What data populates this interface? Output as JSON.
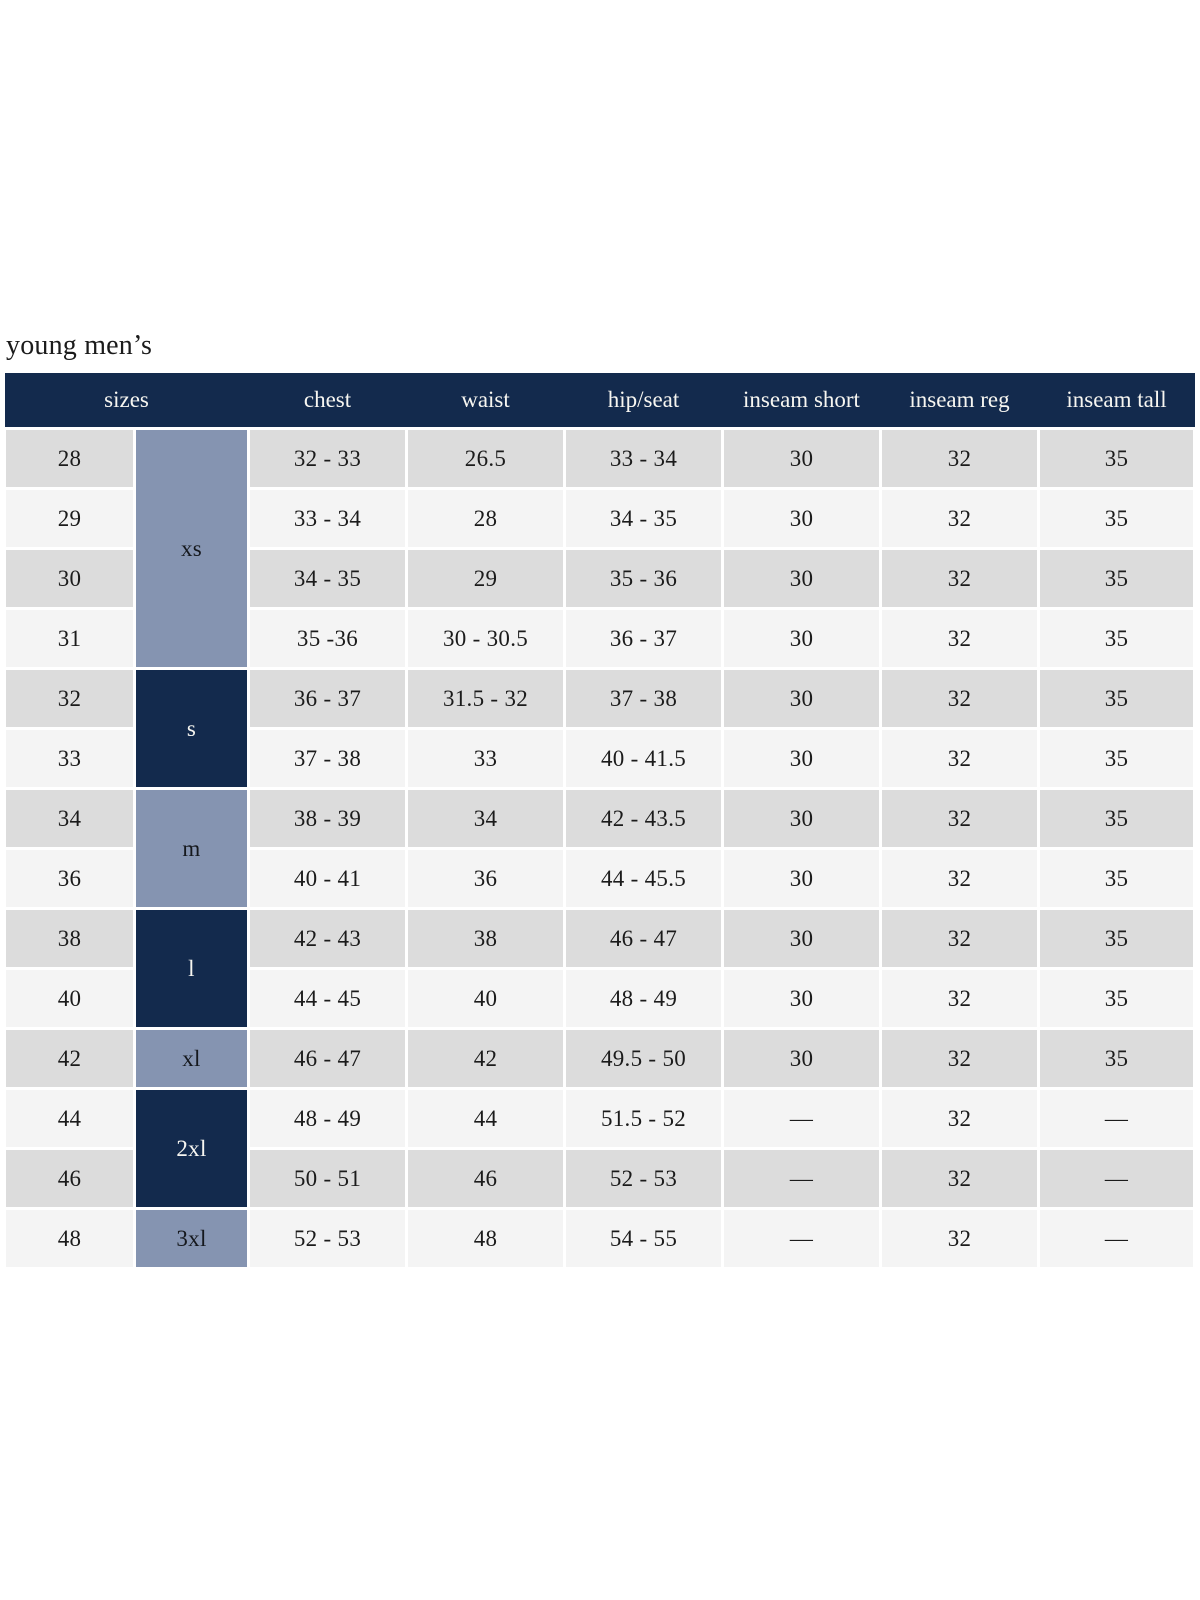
{
  "page": {
    "title": "young men’s"
  },
  "table": {
    "headers": [
      "sizes",
      "chest",
      "waist",
      "hip/seat",
      "inseam short",
      "inseam reg",
      "inseam tall"
    ],
    "size_groups": [
      {
        "label": "xs",
        "rows": 4,
        "variant": "steel"
      },
      {
        "label": "s",
        "rows": 2,
        "variant": "navy"
      },
      {
        "label": "m",
        "rows": 2,
        "variant": "steel"
      },
      {
        "label": "l",
        "rows": 2,
        "variant": "navy"
      },
      {
        "label": "xl",
        "rows": 1,
        "variant": "steel"
      },
      {
        "label": "2xl",
        "rows": 2,
        "variant": "navy"
      },
      {
        "label": "3xl",
        "rows": 1,
        "variant": "steel"
      }
    ],
    "rows": [
      {
        "size": "28",
        "chest": "32 - 33",
        "waist": "26.5",
        "hip_seat": "33 - 34",
        "inseam_short": "30",
        "inseam_reg": "32",
        "inseam_tall": "35"
      },
      {
        "size": "29",
        "chest": "33 - 34",
        "waist": "28",
        "hip_seat": "34 - 35",
        "inseam_short": "30",
        "inseam_reg": "32",
        "inseam_tall": "35"
      },
      {
        "size": "30",
        "chest": "34 - 35",
        "waist": "29",
        "hip_seat": "35 - 36",
        "inseam_short": "30",
        "inseam_reg": "32",
        "inseam_tall": "35"
      },
      {
        "size": "31",
        "chest": "35 -36",
        "waist": "30 - 30.5",
        "hip_seat": "36 - 37",
        "inseam_short": "30",
        "inseam_reg": "32",
        "inseam_tall": "35"
      },
      {
        "size": "32",
        "chest": "36 - 37",
        "waist": "31.5 - 32",
        "hip_seat": "37 - 38",
        "inseam_short": "30",
        "inseam_reg": "32",
        "inseam_tall": "35"
      },
      {
        "size": "33",
        "chest": "37 - 38",
        "waist": "33",
        "hip_seat": "40 - 41.5",
        "inseam_short": "30",
        "inseam_reg": "32",
        "inseam_tall": "35"
      },
      {
        "size": "34",
        "chest": "38 - 39",
        "waist": "34",
        "hip_seat": "42 - 43.5",
        "inseam_short": "30",
        "inseam_reg": "32",
        "inseam_tall": "35"
      },
      {
        "size": "36",
        "chest": "40 - 41",
        "waist": "36",
        "hip_seat": "44 - 45.5",
        "inseam_short": "30",
        "inseam_reg": "32",
        "inseam_tall": "35"
      },
      {
        "size": "38",
        "chest": "42 - 43",
        "waist": "38",
        "hip_seat": "46 - 47",
        "inseam_short": "30",
        "inseam_reg": "32",
        "inseam_tall": "35"
      },
      {
        "size": "40",
        "chest": "44 - 45",
        "waist": "40",
        "hip_seat": "48 - 49",
        "inseam_short": "30",
        "inseam_reg": "32",
        "inseam_tall": "35"
      },
      {
        "size": "42",
        "chest": "46 - 47",
        "waist": "42",
        "hip_seat": "49.5 - 50",
        "inseam_short": "30",
        "inseam_reg": "32",
        "inseam_tall": "35"
      },
      {
        "size": "44",
        "chest": "48 - 49",
        "waist": "44",
        "hip_seat": "51.5 - 52",
        "inseam_short": "—",
        "inseam_reg": "32",
        "inseam_tall": "—"
      },
      {
        "size": "46",
        "chest": "50 - 51",
        "waist": "46",
        "hip_seat": "52 - 53",
        "inseam_short": "—",
        "inseam_reg": "32",
        "inseam_tall": "—"
      },
      {
        "size": "48",
        "chest": "52 - 53",
        "waist": "48",
        "hip_seat": "54 - 55",
        "inseam_short": "—",
        "inseam_reg": "32",
        "inseam_tall": "—"
      }
    ],
    "colors": {
      "header_bg": "#132a4d",
      "group_steel_bg": "#8594b1",
      "group_navy_bg": "#132a4d",
      "row_gray": "#dcdcdc",
      "row_light": "#f4f4f4",
      "header_text": "#f7f6f1",
      "body_text": "#1b1b1b"
    }
  }
}
